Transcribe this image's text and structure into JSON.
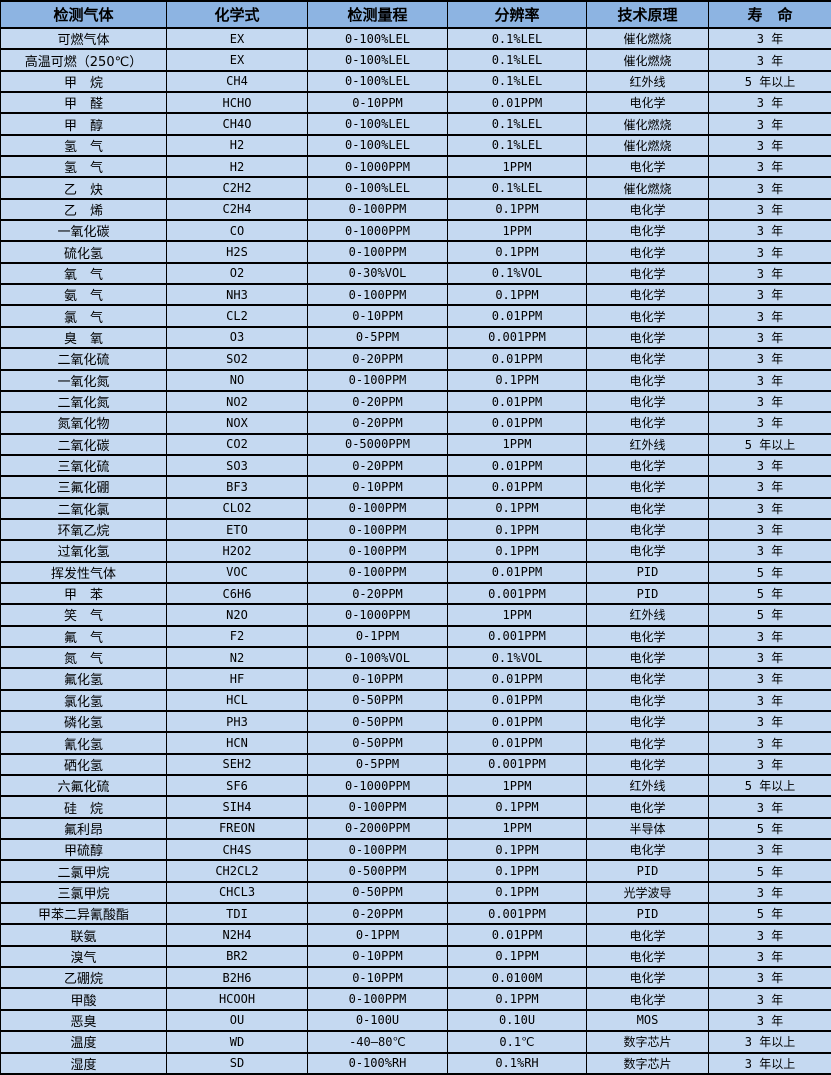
{
  "colors": {
    "header_bg": "#8db4e2",
    "row_bg": "#c5d9f1",
    "border": "#000000",
    "text": "#000000"
  },
  "table": {
    "columns": [
      "检测气体",
      "化学式",
      "检测量程",
      "分辨率",
      "技术原理",
      "寿　命"
    ],
    "column_keys": [
      "gas",
      "formula",
      "range",
      "resolution",
      "principle",
      "lifespan"
    ],
    "rows": [
      [
        "可燃气体",
        "EX",
        "0-100%LEL",
        "0.1%LEL",
        "催化燃烧",
        "3 年"
      ],
      [
        "高温可燃（250℃）",
        "EX",
        "0-100%LEL",
        "0.1%LEL",
        "催化燃烧",
        "3 年"
      ],
      [
        "甲　烷",
        "CH4",
        "0-100%LEL",
        "0.1%LEL",
        "红外线",
        "5 年以上"
      ],
      [
        "甲　醛",
        "HCHO",
        "0-10PPM",
        "0.01PPM",
        "电化学",
        "3 年"
      ],
      [
        "甲　醇",
        "CH4O",
        "0-100%LEL",
        "0.1%LEL",
        "催化燃烧",
        "3 年"
      ],
      [
        "氢　气",
        "H2",
        "0-100%LEL",
        "0.1%LEL",
        "催化燃烧",
        "3 年"
      ],
      [
        "氢　气",
        "H2",
        "0-1000PPM",
        "1PPM",
        "电化学",
        "3 年"
      ],
      [
        "乙　炔",
        "C2H2",
        "0-100%LEL",
        "0.1%LEL",
        "催化燃烧",
        "3 年"
      ],
      [
        "乙　烯",
        "C2H4",
        "0-100PPM",
        "0.1PPM",
        "电化学",
        "3 年"
      ],
      [
        "一氧化碳",
        "CO",
        "0-1000PPM",
        "1PPM",
        "电化学",
        "3 年"
      ],
      [
        "硫化氢",
        "H2S",
        "0-100PPM",
        "0.1PPM",
        "电化学",
        "3 年"
      ],
      [
        "氧　气",
        "O2",
        "0-30%VOL",
        "0.1%VOL",
        "电化学",
        "3 年"
      ],
      [
        "氨　气",
        "NH3",
        "0-100PPM",
        "0.1PPM",
        "电化学",
        "3 年"
      ],
      [
        "氯　气",
        "CL2",
        "0-10PPM",
        "0.01PPM",
        "电化学",
        "3 年"
      ],
      [
        "臭　氧",
        "O3",
        "0-5PPM",
        "0.001PPM",
        "电化学",
        "3 年"
      ],
      [
        "二氧化硫",
        "SO2",
        "0-20PPM",
        "0.01PPM",
        "电化学",
        "3 年"
      ],
      [
        "一氧化氮",
        "NO",
        "0-100PPM",
        "0.1PPM",
        "电化学",
        "3 年"
      ],
      [
        "二氧化氮",
        "NO2",
        "0-20PPM",
        "0.01PPM",
        "电化学",
        "3 年"
      ],
      [
        "氮氧化物",
        "NOX",
        "0-20PPM",
        "0.01PPM",
        "电化学",
        "3 年"
      ],
      [
        "二氧化碳",
        "CO2",
        "0-5000PPM",
        "1PPM",
        "红外线",
        "5 年以上"
      ],
      [
        "三氧化硫",
        "SO3",
        "0-20PPM",
        "0.01PPM",
        "电化学",
        "3 年"
      ],
      [
        "三氟化硼",
        "BF3",
        "0-10PPM",
        "0.01PPM",
        "电化学",
        "3 年"
      ],
      [
        "二氧化氯",
        "CLO2",
        "0-100PPM",
        "0.1PPM",
        "电化学",
        "3 年"
      ],
      [
        "环氧乙烷",
        "ETO",
        "0-100PPM",
        "0.1PPM",
        "电化学",
        "3 年"
      ],
      [
        "过氧化氢",
        "H2O2",
        "0-100PPM",
        "0.1PPM",
        "电化学",
        "3 年"
      ],
      [
        "挥发性气体",
        "VOC",
        "0-100PPM",
        "0.01PPM",
        "PID",
        "5 年"
      ],
      [
        "甲　苯",
        "C6H6",
        "0-20PPM",
        "0.001PPM",
        "PID",
        "5 年"
      ],
      [
        "笑　气",
        "N2O",
        "0-1000PPM",
        "1PPM",
        "红外线",
        "5 年"
      ],
      [
        "氟　气",
        "F2",
        "0-1PPM",
        "0.001PPM",
        "电化学",
        "3 年"
      ],
      [
        "氮　气",
        "N2",
        "0-100%VOL",
        "0.1%VOL",
        "电化学",
        "3 年"
      ],
      [
        "氟化氢",
        "HF",
        "0-10PPM",
        "0.01PPM",
        "电化学",
        "3 年"
      ],
      [
        "氯化氢",
        "HCL",
        "0-50PPM",
        "0.01PPM",
        "电化学",
        "3 年"
      ],
      [
        "磷化氢",
        "PH3",
        "0-50PPM",
        "0.01PPM",
        "电化学",
        "3 年"
      ],
      [
        "氰化氢",
        "HCN",
        "0-50PPM",
        "0.01PPM",
        "电化学",
        "3 年"
      ],
      [
        "硒化氢",
        "SEH2",
        "0-5PPM",
        "0.001PPM",
        "电化学",
        "3 年"
      ],
      [
        "六氟化硫",
        "SF6",
        "0-1000PPM",
        "1PPM",
        "红外线",
        "5 年以上"
      ],
      [
        "硅　烷",
        "SIH4",
        "0-100PPM",
        "0.1PPM",
        "电化学",
        "3 年"
      ],
      [
        "氟利昂",
        "FREON",
        "0-2000PPM",
        "1PPM",
        "半导体",
        "5 年"
      ],
      [
        "甲硫醇",
        "CH4S",
        "0-100PPM",
        "0.1PPM",
        "电化学",
        "3 年"
      ],
      [
        "二氯甲烷",
        "CH2CL2",
        "0-500PPM",
        "0.1PPM",
        "PID",
        "5 年"
      ],
      [
        "三氯甲烷",
        "CHCL3",
        "0-50PPM",
        "0.1PPM",
        "光学波导",
        "3 年"
      ],
      [
        "甲苯二异氰酸酯",
        "TDI",
        "0-20PPM",
        "0.001PPM",
        "PID",
        "5 年"
      ],
      [
        "联氨",
        "N2H4",
        "0-1PPM",
        "0.01PPM",
        "电化学",
        "3 年"
      ],
      [
        "溴气",
        "BR2",
        "0-10PPM",
        "0.1PPM",
        "电化学",
        "3 年"
      ],
      [
        "乙硼烷",
        "B2H6",
        "0-10PPM",
        "0.0100M",
        "电化学",
        "3 年"
      ],
      [
        "甲酸",
        "HCOOH",
        "0-100PPM",
        "0.1PPM",
        "电化学",
        "3 年"
      ],
      [
        "恶臭",
        "OU",
        "0-100U",
        "0.10U",
        "MOS",
        "3 年"
      ],
      [
        "温度",
        "WD",
        "-40—80℃",
        "0.1℃",
        "数字芯片",
        "3 年以上"
      ],
      [
        "湿度",
        "SD",
        "0-100%RH",
        "0.1%RH",
        "数字芯片",
        "3 年以上"
      ]
    ]
  }
}
